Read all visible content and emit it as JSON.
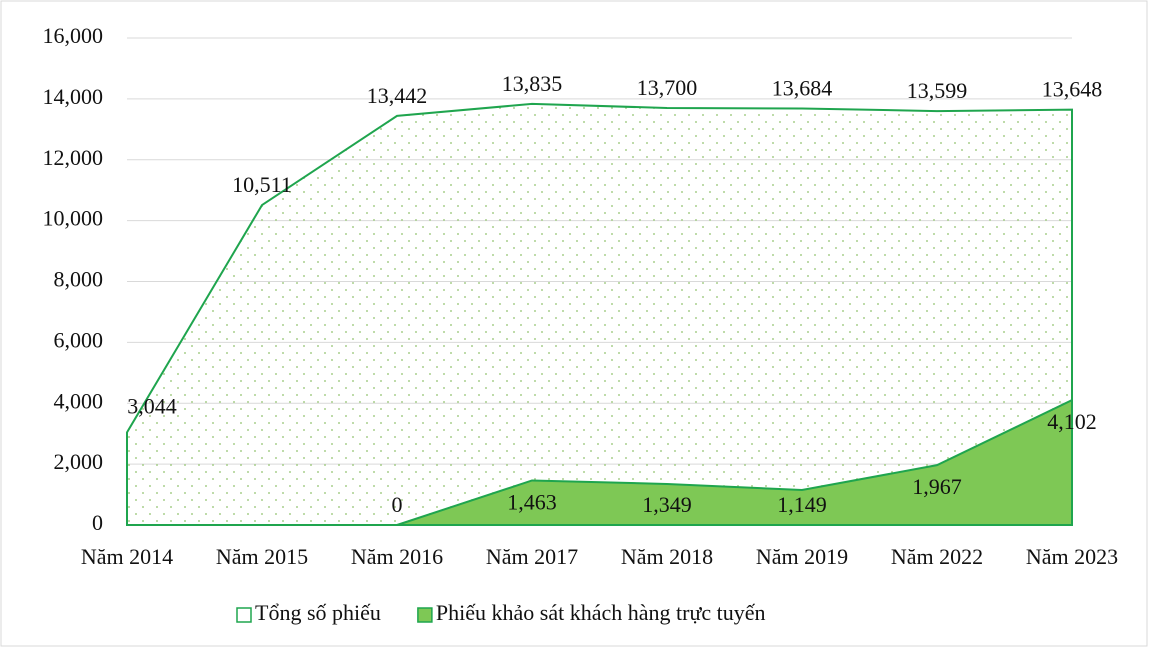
{
  "chart_data": {
    "type": "area",
    "categories": [
      "Năm 2014",
      "Năm 2015",
      "Năm 2016",
      "Năm 2017",
      "Năm 2018",
      "Năm 2019",
      "Năm 2022",
      "Năm 2023"
    ],
    "series": [
      {
        "name": "Tổng số phiếu",
        "color": "#1fa54e",
        "values": [
          3044,
          10511,
          13442,
          13835,
          13700,
          13684,
          13599,
          13648
        ],
        "value_labels": [
          "3,044",
          "10,511",
          "13,442",
          "13,835",
          "13,700",
          "13,684",
          "13,599",
          "13,648"
        ]
      },
      {
        "name": "Phiếu khảo sát khách hàng trực tuyến",
        "color": "#7ec855",
        "values": [
          null,
          null,
          0,
          1463,
          1349,
          1149,
          1967,
          4102
        ],
        "value_labels": [
          null,
          null,
          "0",
          "1,463",
          "1,349",
          "1,149",
          "1,967",
          "4,102"
        ]
      }
    ],
    "ylim": [
      0,
      16000
    ],
    "yticks": [
      0,
      {
        "value": 2000,
        "label": "2,000"
      },
      {
        "value": 4000,
        "label": "4,000"
      },
      {
        "value": 6000,
        "label": "6,000"
      },
      {
        "value": 8000,
        "label": "8,000"
      },
      {
        "value": 10000,
        "label": "10,000"
      },
      {
        "value": 12000,
        "label": "12,000"
      },
      {
        "value": 14000,
        "label": "14,000"
      },
      {
        "value": 16000,
        "label": "16,000"
      }
    ],
    "grid": true,
    "legend": "bottom"
  }
}
